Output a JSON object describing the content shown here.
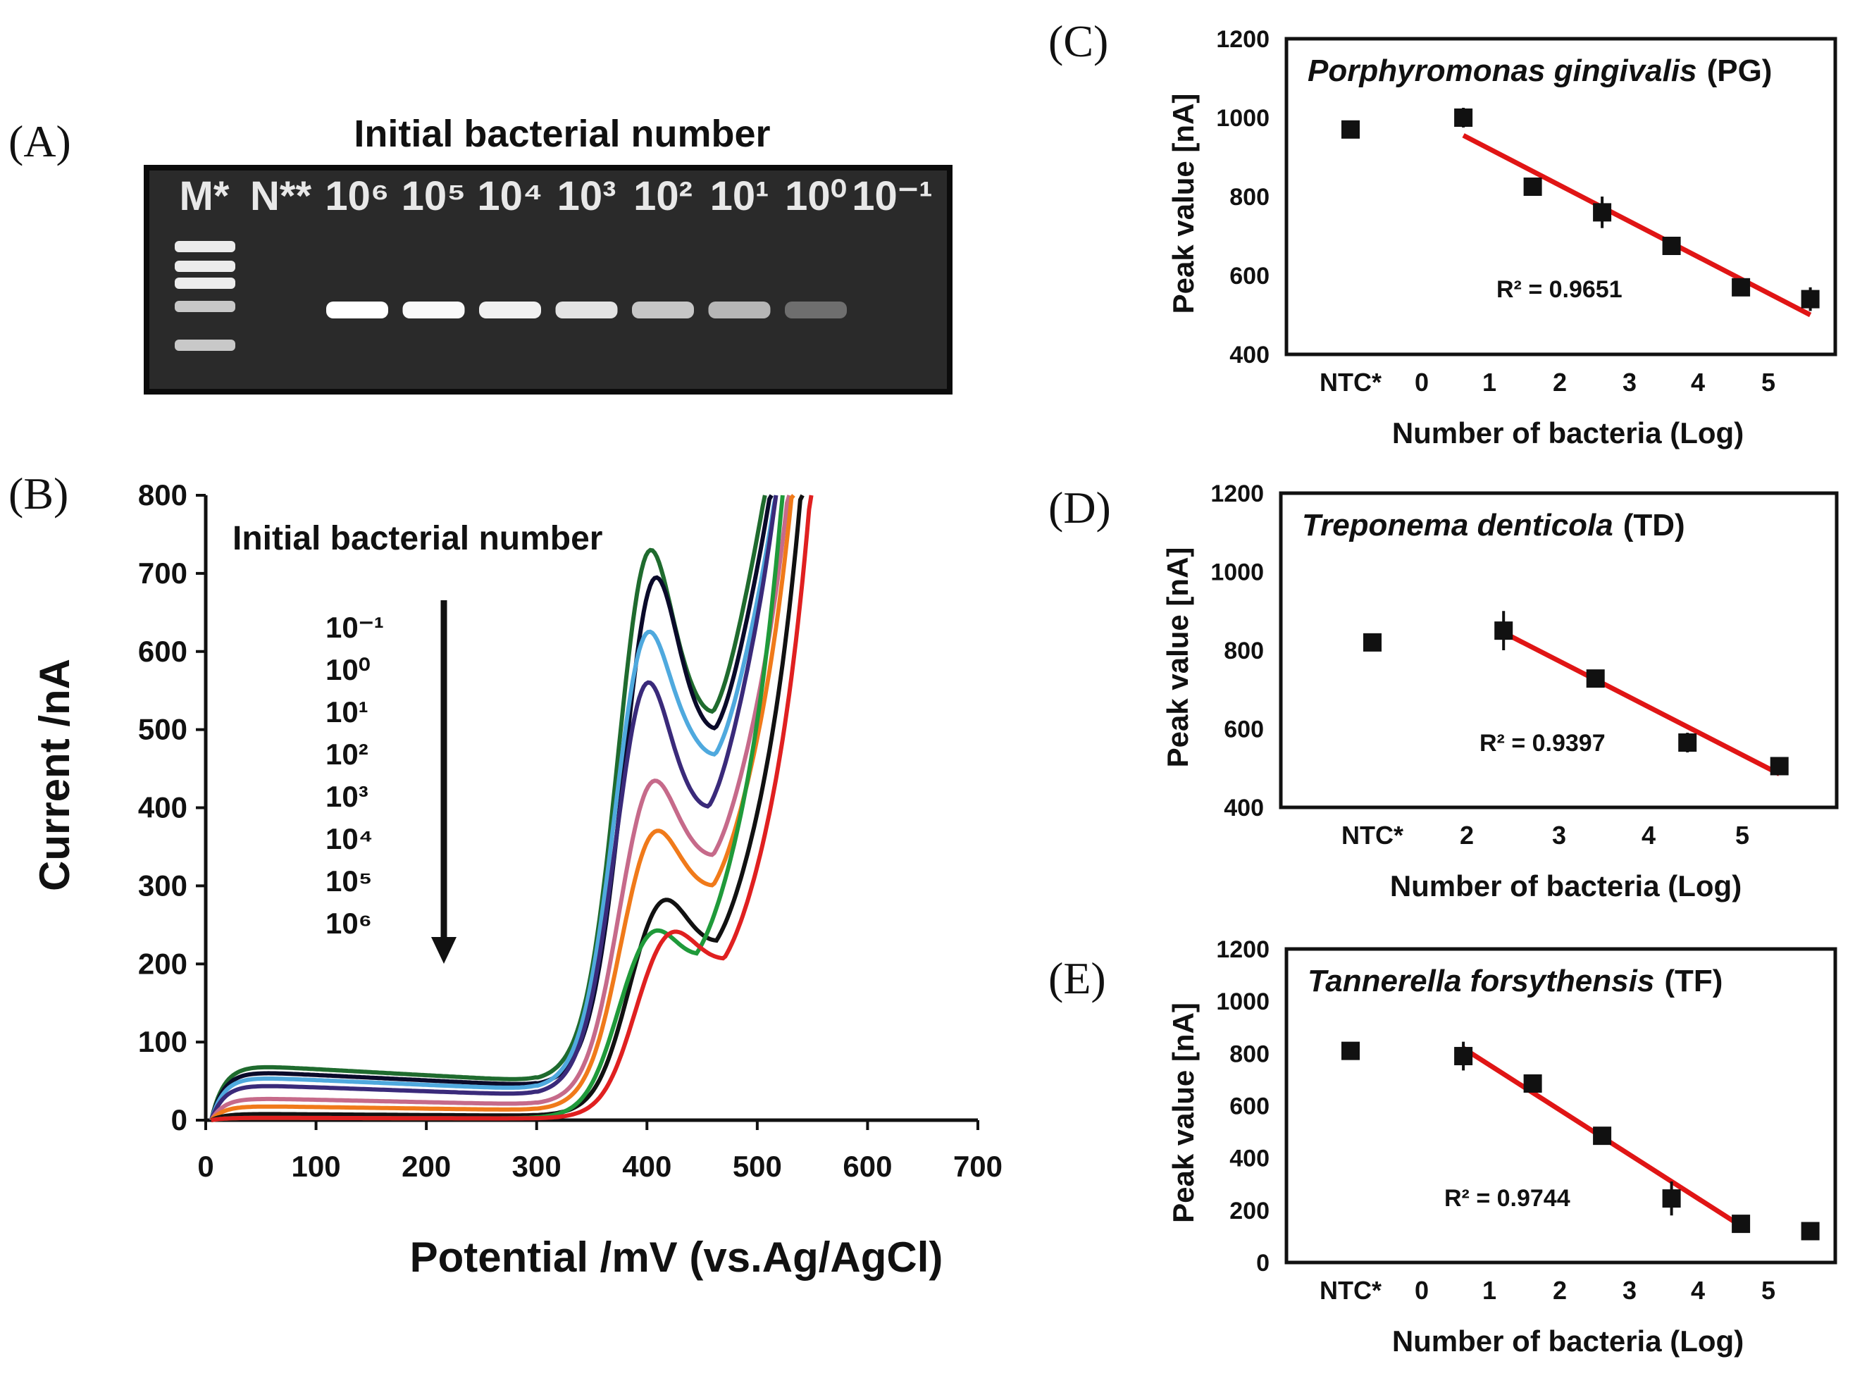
{
  "panels": {
    "A": "(A)",
    "B": "(B)",
    "C": "(C)",
    "D": "(D)",
    "E": "(E)"
  },
  "gel": {
    "title": "Initial bacterial number",
    "lanes": [
      "M*",
      "N**",
      "10⁶",
      "10⁵",
      "10⁴",
      "10³",
      "10²",
      "10¹",
      "10⁰",
      "10⁻¹"
    ],
    "band_intensity": [
      0,
      0,
      1.0,
      0.98,
      0.95,
      0.9,
      0.78,
      0.72,
      0.35,
      0
    ]
  },
  "chart_data": [
    {
      "id": "B",
      "type": "line",
      "title": "",
      "xlabel": "Potential /mV (vs.Ag/AgCl)",
      "ylabel": "Current /nA",
      "xlim": [
        0,
        700
      ],
      "ylim": [
        0,
        800
      ],
      "xticks": [
        0,
        100,
        200,
        300,
        400,
        500,
        600,
        700
      ],
      "yticks": [
        0,
        100,
        200,
        300,
        400,
        500,
        600,
        700,
        800
      ],
      "annotation": "Initial bacterial number",
      "legend": [
        "10⁻¹",
        "10⁰",
        "10¹",
        "10²",
        "10³",
        "10⁴",
        "10⁵",
        "10⁶"
      ],
      "series": [
        {
          "name": "10⁻¹",
          "color": "#1f6b2e",
          "peak_mv": 400,
          "peak": 700,
          "valley_mv": 460,
          "valley": 510,
          "base": 70
        },
        {
          "name": "10⁰",
          "color": "#0a0a2a",
          "peak_mv": 405,
          "peak": 670,
          "valley_mv": 462,
          "valley": 490,
          "base": 62
        },
        {
          "name": "10¹",
          "color": "#4fa9de",
          "peak_mv": 398,
          "peak": 600,
          "valley_mv": 462,
          "valley": 450,
          "base": 55
        },
        {
          "name": "10²",
          "color": "#3a2a7a",
          "peak_mv": 398,
          "peak": 540,
          "valley_mv": 456,
          "valley": 390,
          "base": 45
        },
        {
          "name": "10³",
          "color": "#c66a8a",
          "peak_mv": 403,
          "peak": 420,
          "valley_mv": 460,
          "valley": 320,
          "base": 28
        },
        {
          "name": "10⁴",
          "color": "#f07a1a",
          "peak_mv": 405,
          "peak": 360,
          "valley_mv": 460,
          "valley": 280,
          "base": 18
        },
        {
          "name": "10⁵",
          "color": "#111111",
          "peak_mv": 413,
          "peak": 275,
          "valley_mv": 463,
          "valley": 210,
          "base": 8
        },
        {
          "name": "10⁶",
          "color": "#1f9a3a",
          "peak_mv": 405,
          "peak": 240,
          "valley_mv": 445,
          "valley": 190,
          "base": 3
        },
        {
          "name": "10⁶ (red)",
          "color": "#e02020",
          "peak_mv": 420,
          "peak": 235,
          "valley_mv": 470,
          "valley": 185,
          "base": 3
        }
      ]
    },
    {
      "id": "C",
      "type": "scatter",
      "title": "Porphyromonas gingivalis",
      "title_suffix": "(PG)",
      "xlabel": "Number of bacteria (Log)",
      "ylabel": "Peak value [nA]",
      "ylim": [
        400,
        1200
      ],
      "yticks": [
        400,
        600,
        800,
        1000,
        1200
      ],
      "xtick_labels": [
        "NTC*",
        "0",
        "1",
        "2",
        "3",
        "4",
        "5"
      ],
      "ntc": {
        "y": 970
      },
      "points": [
        {
          "x": 0.6,
          "y": 1000,
          "err": 25
        },
        {
          "x": 1.6,
          "y": 825,
          "err": 20
        },
        {
          "x": 2.6,
          "y": 760,
          "err": 40
        },
        {
          "x": 3.6,
          "y": 675,
          "err": 10
        },
        {
          "x": 4.6,
          "y": 570,
          "err": 8
        },
        {
          "x": 5.6,
          "y": 540,
          "err": 30
        }
      ],
      "fit": {
        "x0": 0.6,
        "y0": 955,
        "x1": 5.6,
        "y1": 500
      },
      "r2": "R² = 0.9651"
    },
    {
      "id": "D",
      "type": "scatter",
      "title": "Treponema denticola",
      "title_suffix": "(TD)",
      "xlabel": "Number of bacteria (Log)",
      "ylabel": "Peak value [nA]",
      "ylim": [
        400,
        1200
      ],
      "yticks": [
        400,
        600,
        800,
        1000,
        1200
      ],
      "xtick_labels": [
        "NTC*",
        "2",
        "3",
        "4",
        "5"
      ],
      "ntc": {
        "y": 820
      },
      "points": [
        {
          "x": 2.4,
          "y": 850,
          "err": 50
        },
        {
          "x": 3.4,
          "y": 728,
          "err": 15
        },
        {
          "x": 4.4,
          "y": 565,
          "err": 25
        },
        {
          "x": 5.4,
          "y": 505,
          "err": 10
        }
      ],
      "fit": {
        "x0": 2.4,
        "y0": 845,
        "x1": 5.4,
        "y1": 485
      },
      "r2": "R² = 0.9397"
    },
    {
      "id": "E",
      "type": "scatter",
      "title": "Tannerella forsythensis",
      "title_suffix": "(TF)",
      "xlabel": "Number of bacteria (Log)",
      "ylabel": "Peak value [nA]",
      "ylim": [
        0,
        1200
      ],
      "yticks": [
        0,
        200,
        400,
        600,
        800,
        1000,
        1200
      ],
      "xtick_labels": [
        "NTC*",
        "0",
        "1",
        "2",
        "3",
        "4",
        "5"
      ],
      "ntc": {
        "y": 810
      },
      "points": [
        {
          "x": 0.6,
          "y": 790,
          "err": 55
        },
        {
          "x": 1.6,
          "y": 685,
          "err": 35
        },
        {
          "x": 2.6,
          "y": 485,
          "err": 10
        },
        {
          "x": 3.6,
          "y": 245,
          "err": 65
        },
        {
          "x": 4.6,
          "y": 148,
          "err": 10
        },
        {
          "x": 5.6,
          "y": 120,
          "err": 10
        }
      ],
      "fit": {
        "x0": 0.6,
        "y0": 820,
        "x1": 4.6,
        "y1": 140
      },
      "r2": "R² = 0.9744"
    }
  ]
}
